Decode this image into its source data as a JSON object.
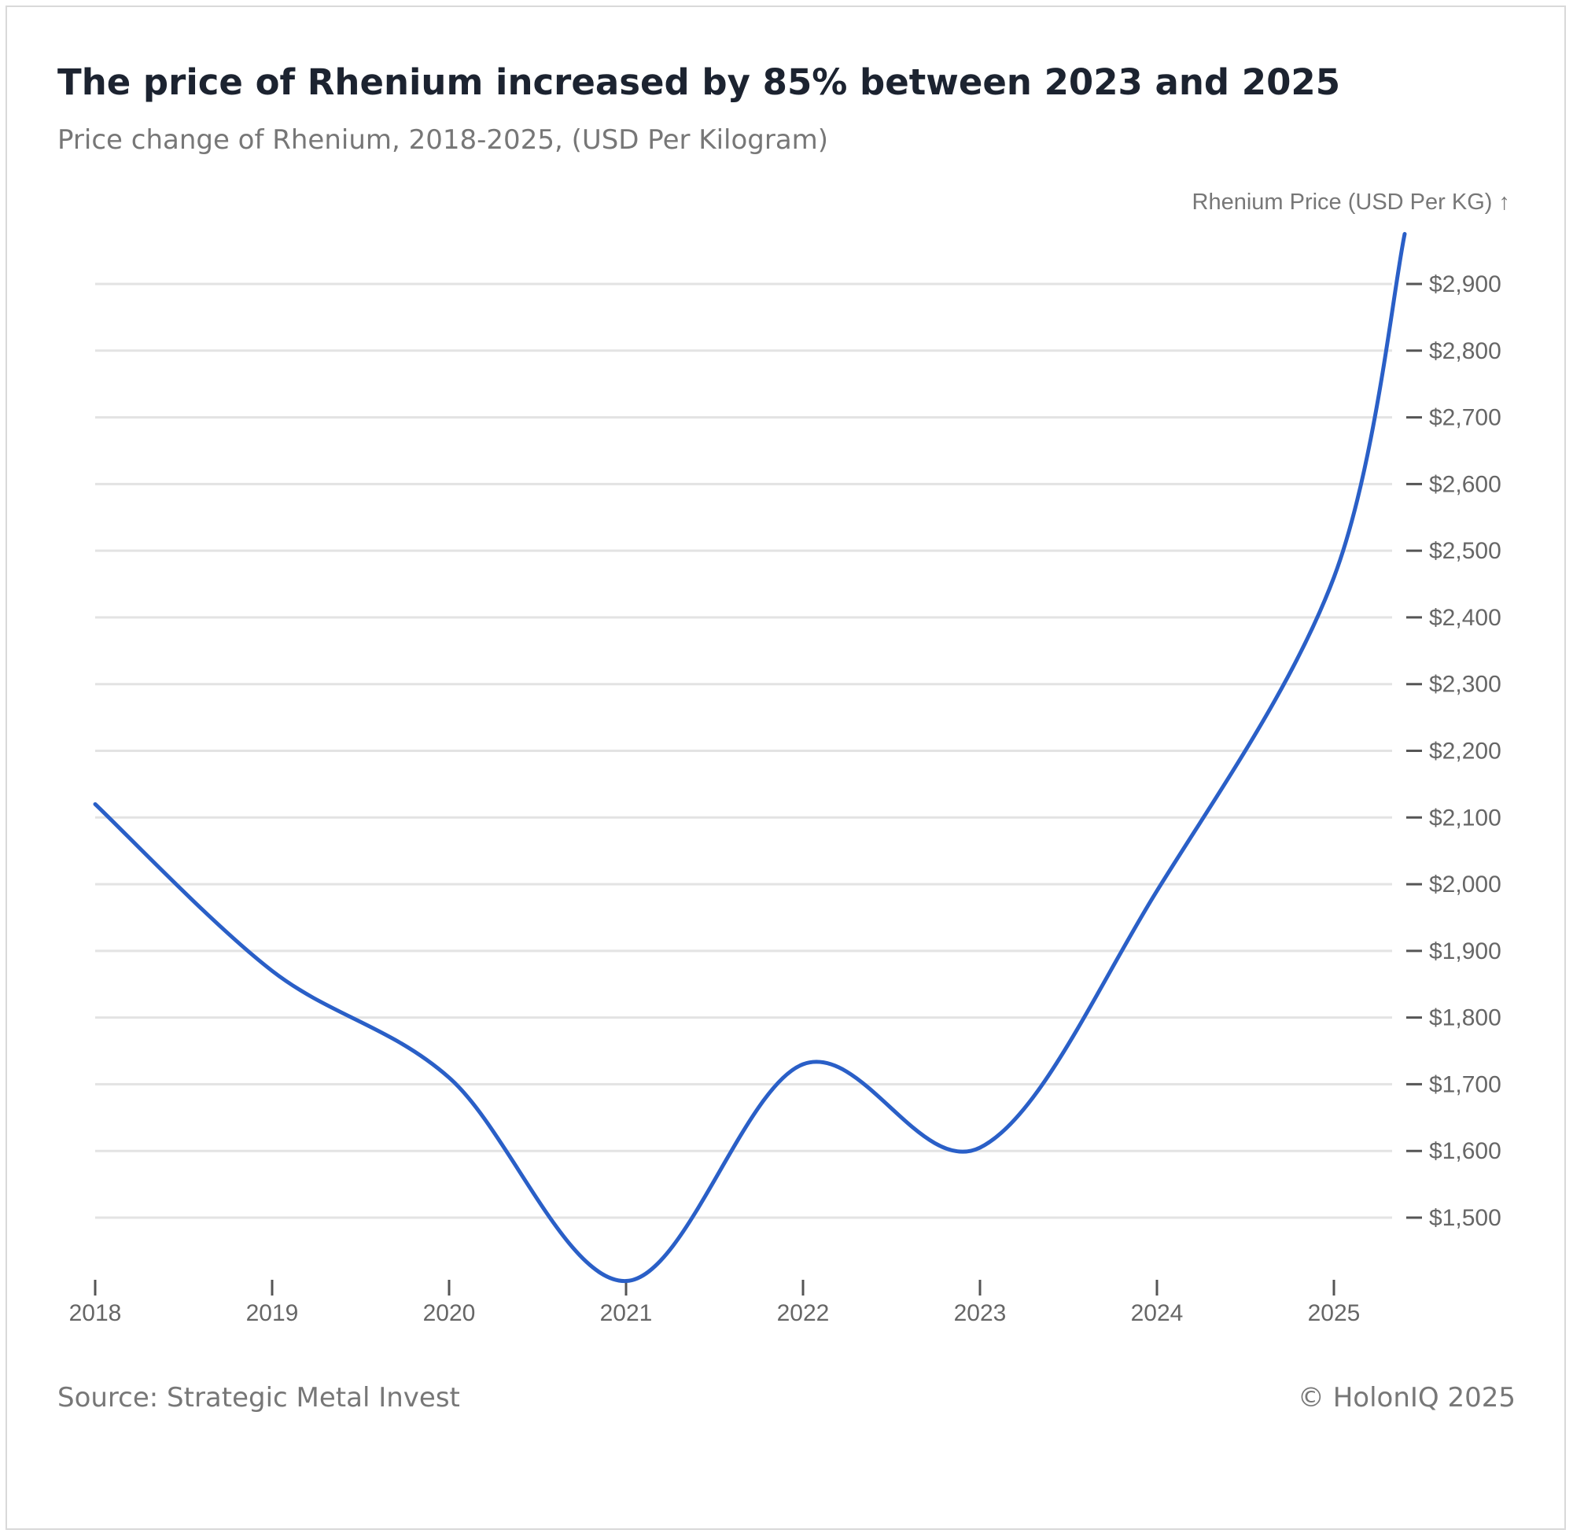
{
  "header": {
    "title": "The price of Rhenium increased by 85% between 2023 and 2025",
    "subtitle": "Price change of Rhenium, 2018-2025, (USD Per Kilogram)"
  },
  "footer": {
    "source": "Source: Strategic Metal Invest",
    "copyright": "© HolonIQ 2025"
  },
  "chart_data": {
    "type": "line",
    "title": "The price of Rhenium increased by 85% between 2023 and 2025",
    "subtitle": "Price change of Rhenium, 2018-2025, (USD Per Kilogram)",
    "xlabel": "",
    "ylabel": "Rhenium Price (USD Per KG) ↑",
    "x": [
      2018,
      2019,
      2020,
      2021,
      2022,
      2023,
      2024,
      2025,
      2025.4
    ],
    "x_ticks": [
      "2018",
      "2019",
      "2020",
      "2021",
      "2022",
      "2023",
      "2024",
      "2025"
    ],
    "y_ticks": [
      1500,
      1600,
      1700,
      1800,
      1900,
      2000,
      2100,
      2200,
      2300,
      2400,
      2500,
      2600,
      2700,
      2800,
      2900
    ],
    "y_tick_labels": [
      "$1,500",
      "$1,600",
      "$1,700",
      "$1,800",
      "$1,900",
      "$2,000",
      "$2,100",
      "$2,200",
      "$2,300",
      "$2,400",
      "$2,500",
      "$2,600",
      "$2,700",
      "$2,800",
      "$2,900"
    ],
    "series": [
      {
        "values": [
          2120,
          1870,
          1710,
          1405,
          1730,
          1605,
          1990,
          2460,
          2975
        ],
        "color": "#2a5fc7"
      }
    ],
    "xlim": [
      2018,
      2025.4
    ],
    "ylim": [
      1405,
      2975
    ],
    "grid": true,
    "y_axis_position": "right"
  }
}
